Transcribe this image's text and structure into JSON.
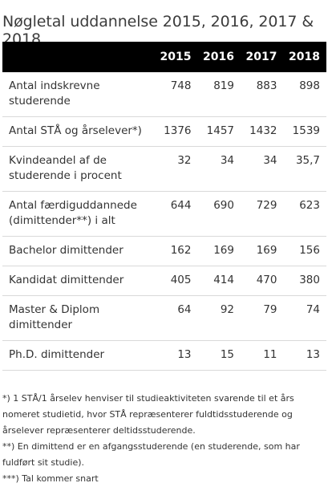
{
  "title": "Nøgletal uddannelse 2015, 2016, 2017 & 2018",
  "table": {
    "label_header": "",
    "years": [
      "2015",
      "2016",
      "2017",
      "2018"
    ],
    "rows": [
      {
        "label": "Antal indskrevne studerende",
        "values": [
          "748",
          "819",
          "883",
          "898"
        ]
      },
      {
        "label": "Antal STÅ og årselever*)",
        "values": [
          "1376",
          "1457",
          "1432",
          "1539"
        ]
      },
      {
        "label": "Kvindeandel af de studerende i procent",
        "values": [
          "32",
          "34",
          "34",
          "35,7"
        ]
      },
      {
        "label": "Antal færdiguddannede (dimittender**) i alt",
        "values": [
          "644",
          "690",
          "729",
          "623"
        ]
      },
      {
        "label": "Bachelor dimittender",
        "values": [
          "162",
          "169",
          "169",
          "156"
        ]
      },
      {
        "label": "Kandidat dimittender",
        "values": [
          "405",
          "414",
          "470",
          "380"
        ]
      },
      {
        "label": "Master & Diplom dimittender",
        "values": [
          "64",
          "92",
          "79",
          "74"
        ]
      },
      {
        "label": "Ph.D. dimittender",
        "values": [
          "13",
          "15",
          "11",
          "13"
        ]
      }
    ]
  },
  "notes": [
    "*) 1 STÅ/1 årselev henviser til studieaktiviteten svarende til et års nomeret studietid, hvor STÅ repræsenterer fuldtidsstuderende og årselever repræsenterer deltidsstuderende.",
    "**) En dimittend er en afgangsstuderende (en studerende, som har fuldført sit studie).",
    "***) Tal kommer snart"
  ]
}
